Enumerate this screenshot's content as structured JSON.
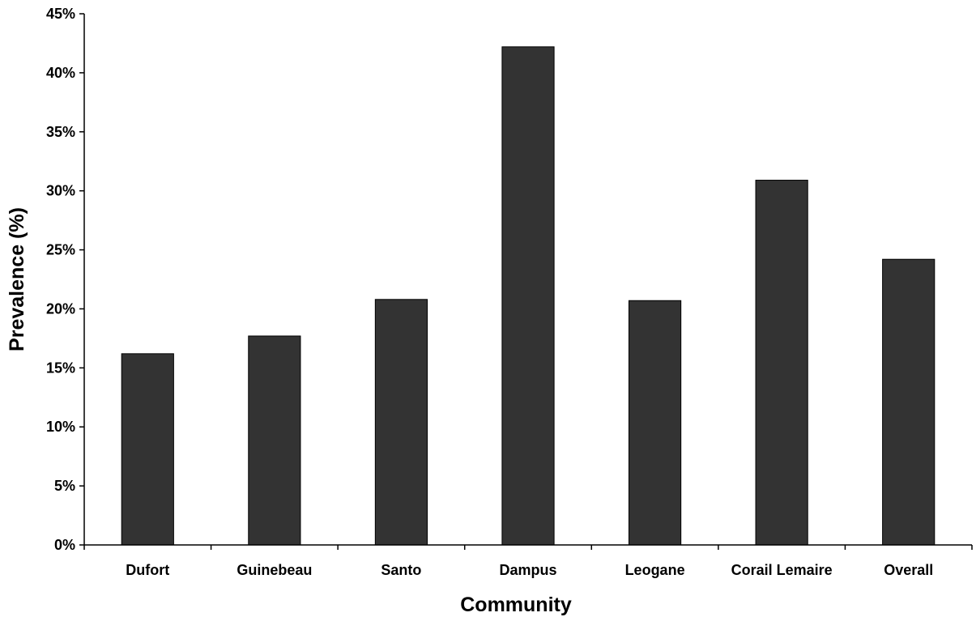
{
  "chart_data": {
    "type": "bar",
    "title": "",
    "xlabel": "Community",
    "ylabel": "Prevalence (%)",
    "categories": [
      "Dufort",
      "Guinebeau",
      "Santo",
      "Dampus",
      "Leogane",
      "Corail Lemaire",
      "Overall"
    ],
    "values": [
      16.2,
      17.7,
      20.8,
      42.2,
      20.7,
      30.9,
      24.2
    ],
    "ylim": [
      0,
      45
    ],
    "yticks": [
      0,
      5,
      10,
      15,
      20,
      25,
      30,
      35,
      40,
      45
    ],
    "ytick_labels": [
      "0%",
      "5%",
      "10%",
      "15%",
      "20%",
      "25%",
      "30%",
      "35%",
      "40%",
      "45%"
    ],
    "grid": false,
    "legend": "none",
    "bar_color": "#333333"
  }
}
